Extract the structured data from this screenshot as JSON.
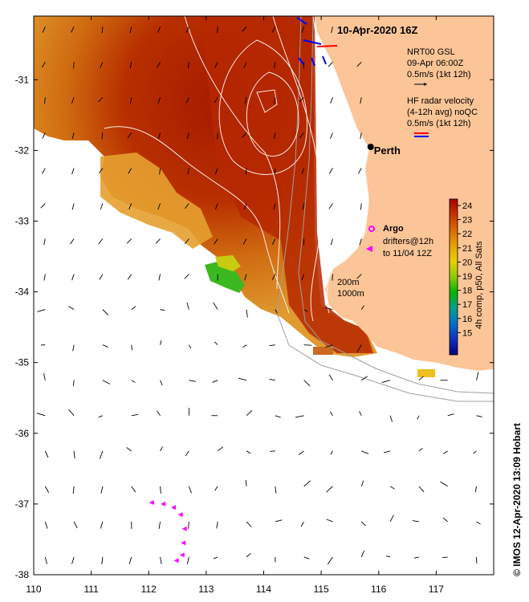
{
  "map": {
    "title": "10-Apr-2020 16Z",
    "credit": "© IMOS 12-Apr-2020 13:09 Hobart",
    "lon_range": [
      110,
      118
    ],
    "lat_range": [
      -38,
      -30.1
    ],
    "x_ticks": [
      "110",
      "111",
      "112",
      "113",
      "114",
      "115",
      "116",
      "117"
    ],
    "y_ticks": [
      "-31",
      "-32",
      "-33",
      "-34",
      "-35",
      "-36",
      "-37",
      "-38"
    ],
    "colors": {
      "land": "#fbc597",
      "sst_hot": "#a51a00",
      "sst_warm": "#d66a10",
      "sst_mid": "#e8a020",
      "sst_cool": "#40b820",
      "argo": "#ff00ff",
      "hf_red": "#ff0000",
      "hf_blue": "#0000ff",
      "contour": "#ffffff",
      "bathy": "#a0a0a0"
    }
  },
  "legend": {
    "gsl_title": "NRT00 GSL",
    "gsl_date": "09-Apr 06:00Z",
    "gsl_scale": "0.5m/s (1kt 12h)",
    "hf_title": "HF radar velocity",
    "hf_avg": "(4-12h avg) noQC",
    "hf_scale": "0.5m/s (1kt 12h)",
    "argo_label": "Argo",
    "drifters_label1": "drifters@12h",
    "drifters_label2": "to 11/04 12Z",
    "depth_200": "200m",
    "depth_1000": "1000m"
  },
  "city": {
    "name": "Perth",
    "lon": 115.86,
    "lat": -31.95
  },
  "colorbar": {
    "ticks": [
      "24",
      "23",
      "22",
      "21",
      "20",
      "19",
      "18",
      "17",
      "16",
      "15"
    ],
    "label": "4h comp, p50, All Sats",
    "stops": [
      "#a80000",
      "#c83200",
      "#de6a00",
      "#e8a200",
      "#e8d000",
      "#8ccc00",
      "#00b400",
      "#00a090",
      "#0070d0",
      "#1030c0",
      "#000080"
    ]
  },
  "drifters": [
    {
      "lon": 112.05,
      "lat": -36.98
    },
    {
      "lon": 112.25,
      "lat": -37.0
    },
    {
      "lon": 112.43,
      "lat": -37.05
    },
    {
      "lon": 112.55,
      "lat": -37.15
    },
    {
      "lon": 112.62,
      "lat": -37.35
    },
    {
      "lon": 112.6,
      "lat": -37.55
    },
    {
      "lon": 112.58,
      "lat": -37.72
    },
    {
      "lon": 112.48,
      "lat": -37.8
    }
  ]
}
